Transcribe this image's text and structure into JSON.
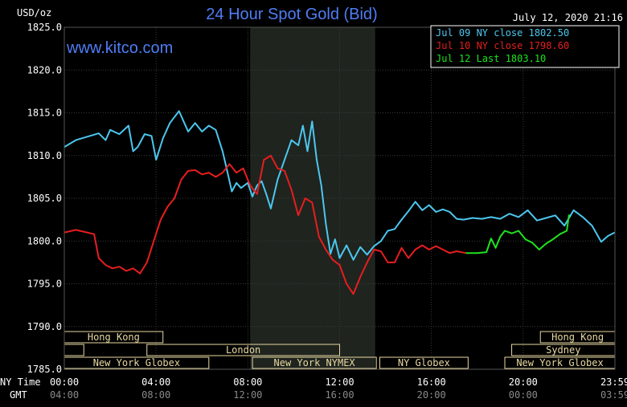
{
  "header": {
    "title": "24 Hour Spot Gold (Bid)",
    "date": "July 12, 2020 21:16",
    "brand": "www.kitco.com",
    "y_unit": "USD/oz",
    "x_label_ny": "NY Time",
    "x_label_gmt": "GMT"
  },
  "colors": {
    "background": "#000000",
    "grid": "#3a3a3a",
    "axis_text": "#ffffff",
    "session_band": "#1f241f",
    "market_box": "#e8d8a0",
    "title": "#4f7df5",
    "brand": "#4f7df5",
    "jul09": "#4cc7ee",
    "jul10": "#e61e1e",
    "jul12": "#1fe31f"
  },
  "legend": [
    {
      "text": "Jul 09 NY close 1802.50",
      "color": "#4cc7ee"
    },
    {
      "text": "Jul 10 NY close 1798.60",
      "color": "#e61e1e"
    },
    {
      "text": "Jul 12 Last 1803.10",
      "color": "#1fe31f"
    }
  ],
  "markets": [
    {
      "label": "Hong Kong",
      "start": 0,
      "end": 4.3
    },
    {
      "label": "Hong Kong",
      "start": 20.75,
      "end": 24
    },
    {
      "label": "",
      "start": 0,
      "end": 0.85
    },
    {
      "label": "London",
      "start": 3.6,
      "end": 12
    },
    {
      "label": "Sydney",
      "start": 19.5,
      "end": 24
    },
    {
      "label": "New York Globex",
      "start": 0,
      "end": 6.3
    },
    {
      "label": "New York NYMEX",
      "start": 8.2,
      "end": 13.6
    },
    {
      "label": "NY Globex",
      "start": 13.75,
      "end": 17.6
    },
    {
      "label": "New York Globex",
      "start": 19.2,
      "end": 24
    }
  ],
  "chart_data": {
    "type": "line",
    "title": "24 Hour Spot Gold (Bid)",
    "ylabel": "USD/oz",
    "ylim": [
      1785,
      1825
    ],
    "xlim": [
      0,
      24
    ],
    "y_ticks": [
      "1825.0",
      "1820.0",
      "1815.0",
      "1810.0",
      "1805.0",
      "1800.0",
      "1795.0",
      "1790.0",
      "1785.0"
    ],
    "y_tick_values": [
      1825,
      1820,
      1815,
      1810,
      1805,
      1800,
      1795,
      1790,
      1785
    ],
    "x_tick_values": [
      0,
      4,
      8,
      12,
      16,
      20,
      24
    ],
    "x_ticks_ny": [
      "00:00",
      "04:00",
      "08:00",
      "12:00",
      "16:00",
      "20:00",
      "23:59"
    ],
    "x_ticks_gmt": [
      "04:00",
      "08:00",
      "12:00",
      "16:00",
      "20:00",
      "00:00",
      "03:59"
    ],
    "shaded_hours": [
      8.1,
      13.55
    ],
    "grid": true,
    "legend_position": "top-right",
    "series": [
      {
        "name": "Jul 09 NY close 1802.50",
        "color": "#4cc7ee",
        "x": [
          0,
          0.5,
          1.0,
          1.5,
          1.8,
          2.0,
          2.4,
          2.8,
          3.0,
          3.2,
          3.5,
          3.8,
          4.0,
          4.3,
          4.6,
          5.0,
          5.2,
          5.4,
          5.7,
          6.0,
          6.3,
          6.6,
          6.9,
          7.1,
          7.3,
          7.5,
          7.7,
          8.0,
          8.2,
          8.4,
          8.6,
          8.8,
          9.0,
          9.3,
          9.6,
          9.9,
          10.2,
          10.4,
          10.6,
          10.8,
          11.0,
          11.2,
          11.4,
          11.6,
          11.8,
          12.0,
          12.3,
          12.6,
          12.9,
          13.2,
          13.5,
          13.8,
          14.1,
          14.4,
          14.7,
          15.0,
          15.3,
          15.6,
          15.9,
          16.2,
          16.5,
          16.8,
          17.1,
          17.4,
          17.8,
          18.2,
          18.6,
          19.0,
          19.4,
          19.8,
          20.2,
          20.6,
          21.0,
          21.4,
          21.8,
          22.2,
          22.6,
          23.0,
          23.4,
          23.7,
          23.99
        ],
        "y": [
          1811.0,
          1811.8,
          1812.2,
          1812.6,
          1811.8,
          1813.0,
          1812.5,
          1813.5,
          1810.5,
          1811.0,
          1812.5,
          1812.3,
          1809.5,
          1812.0,
          1813.8,
          1815.2,
          1814.0,
          1812.8,
          1813.8,
          1812.8,
          1813.5,
          1813.0,
          1810.5,
          1808.2,
          1805.8,
          1806.8,
          1806.2,
          1806.8,
          1805.2,
          1806.5,
          1807.0,
          1805.5,
          1803.8,
          1807.2,
          1809.5,
          1811.8,
          1811.2,
          1813.5,
          1810.5,
          1814.0,
          1809.5,
          1806.5,
          1802.0,
          1798.5,
          1800.2,
          1798.0,
          1799.5,
          1797.8,
          1799.3,
          1798.4,
          1799.4,
          1800.0,
          1801.2,
          1801.4,
          1802.5,
          1803.5,
          1804.6,
          1803.6,
          1804.2,
          1803.4,
          1803.7,
          1803.4,
          1802.6,
          1802.5,
          1802.7,
          1802.6,
          1802.8,
          1802.6,
          1803.2,
          1802.8,
          1803.6,
          1802.4,
          1802.7,
          1803.0,
          1801.8,
          1803.6,
          1802.8,
          1801.8,
          1799.9,
          1800.6,
          1801.0
        ]
      },
      {
        "name": "Jul 10 NY close 1798.60",
        "color": "#e61e1e",
        "x": [
          0,
          0.5,
          1.0,
          1.3,
          1.5,
          1.8,
          2.1,
          2.4,
          2.7,
          3.0,
          3.3,
          3.6,
          3.9,
          4.2,
          4.5,
          4.8,
          5.1,
          5.4,
          5.7,
          6.0,
          6.3,
          6.6,
          6.9,
          7.2,
          7.5,
          7.8,
          8.1,
          8.4,
          8.7,
          9.0,
          9.3,
          9.6,
          9.9,
          10.2,
          10.5,
          10.8,
          11.1,
          11.4,
          11.7,
          12.0,
          12.3,
          12.6,
          12.9,
          13.2,
          13.5,
          13.8,
          14.1,
          14.4,
          14.7,
          15.0,
          15.3,
          15.6,
          15.9,
          16.2,
          16.5,
          16.8,
          17.1,
          17.5
        ],
        "y": [
          1801.0,
          1801.3,
          1801.0,
          1800.8,
          1798.0,
          1797.2,
          1796.8,
          1797.0,
          1796.5,
          1796.8,
          1796.2,
          1797.5,
          1800.0,
          1802.5,
          1804.0,
          1805.0,
          1807.2,
          1808.2,
          1808.3,
          1807.8,
          1808.0,
          1807.5,
          1808.0,
          1809.0,
          1808.0,
          1808.5,
          1806.5,
          1805.5,
          1809.5,
          1810.0,
          1808.5,
          1808.2,
          1806.0,
          1803.0,
          1805.0,
          1804.5,
          1800.5,
          1799.0,
          1797.8,
          1797.2,
          1795.0,
          1793.8,
          1795.8,
          1797.5,
          1799.0,
          1798.8,
          1797.5,
          1797.5,
          1799.2,
          1798.0,
          1799.0,
          1799.5,
          1799.0,
          1799.4,
          1799.0,
          1798.6,
          1798.8,
          1798.6
        ]
      },
      {
        "name": "Jul 12 Last 1803.10",
        "color": "#1fe31f",
        "x": [
          17.5,
          18.0,
          18.4,
          18.6,
          18.8,
          19.0,
          19.2,
          19.5,
          19.8,
          20.1,
          20.4,
          20.7,
          21.0,
          21.3,
          21.6,
          21.9,
          22.0
        ],
        "y": [
          1798.6,
          1798.6,
          1798.7,
          1800.3,
          1799.2,
          1800.5,
          1801.2,
          1800.9,
          1801.2,
          1800.2,
          1799.8,
          1799.0,
          1799.7,
          1800.2,
          1800.8,
          1801.2,
          1803.1
        ]
      }
    ]
  }
}
